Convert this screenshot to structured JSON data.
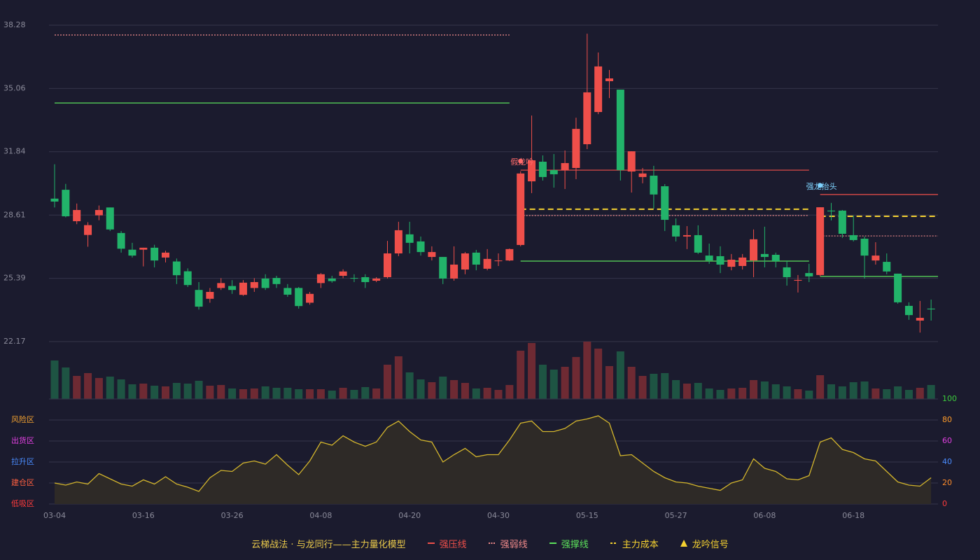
{
  "chart_data": [
    {
      "type": "candlestick",
      "legend_title": "云梯战法 · 与龙同行——主力量化模型",
      "categories": [
        "03-04",
        null,
        null,
        null,
        null,
        null,
        null,
        null,
        "03-16",
        null,
        null,
        null,
        null,
        null,
        null,
        null,
        "03-26",
        null,
        null,
        null,
        null,
        null,
        null,
        null,
        "04-08",
        null,
        null,
        null,
        null,
        null,
        null,
        null,
        "04-20",
        null,
        null,
        null,
        null,
        null,
        null,
        null,
        "04-30",
        null,
        null,
        null,
        null,
        null,
        null,
        null,
        "05-15",
        null,
        null,
        null,
        null,
        null,
        null,
        null,
        "05-27",
        null,
        null,
        null,
        null,
        null,
        null,
        null,
        "06-08",
        null,
        null,
        null,
        null,
        null,
        null,
        null,
        "06-18",
        null,
        null,
        null,
        null,
        null,
        null,
        null
      ],
      "open": [
        29.45,
        29.9,
        28.3,
        27.6,
        28.6,
        29.0,
        27.7,
        26.85,
        26.85,
        26.95,
        26.45,
        26.25,
        25.75,
        24.8,
        24.35,
        24.9,
        25.0,
        24.55,
        24.9,
        25.38,
        25.41,
        24.9,
        24.9,
        24.15,
        25.15,
        25.38,
        25.52,
        25.41,
        25.45,
        25.27,
        25.45,
        26.66,
        27.63,
        27.27,
        26.48,
        26.48,
        25.38,
        25.84,
        26.7,
        25.88,
        26.27,
        26.3,
        27.09,
        30.33,
        31.33,
        30.9,
        30.9,
        31.01,
        32.22,
        33.86,
        35.43,
        35.0,
        30.83,
        30.55,
        30.62,
        30.08,
        28.09,
        27.52,
        27.59,
        26.55,
        26.52,
        25.98,
        26.02,
        26.3,
        26.63,
        26.59,
        25.95,
        25.27,
        25.66,
        25.56,
        28.84,
        28.84,
        27.59,
        27.41,
        26.3,
        26.23,
        25.63,
        23.99,
        23.24,
        23.85
      ],
      "high": [
        31.2,
        30.2,
        29.2,
        28.25,
        29.1,
        29.0,
        27.8,
        27.2,
        26.95,
        27.1,
        26.8,
        26.4,
        25.9,
        25.2,
        24.9,
        25.4,
        25.3,
        25.3,
        25.4,
        25.6,
        25.52,
        25.1,
        24.95,
        24.7,
        25.66,
        25.52,
        25.85,
        25.6,
        25.6,
        25.45,
        27.3,
        28.27,
        28.27,
        27.52,
        27.02,
        26.48,
        27.02,
        26.73,
        26.84,
        26.88,
        26.66,
        26.91,
        30.84,
        33.68,
        31.65,
        31.72,
        31.9,
        33.57,
        37.85,
        36.89,
        36.0,
        35.0,
        31.86,
        31.01,
        31.12,
        30.19,
        28.44,
        28.05,
        28.09,
        27.16,
        27.02,
        26.63,
        26.63,
        27.88,
        28.02,
        26.7,
        26.3,
        25.56,
        26.13,
        29.01,
        29.23,
        28.87,
        28.59,
        27.52,
        27.23,
        26.66,
        25.63,
        24.17,
        24.24,
        24.31
      ],
      "low": [
        29.0,
        28.5,
        28.15,
        27.0,
        28.35,
        27.8,
        26.7,
        26.45,
        26.0,
        25.95,
        26.2,
        25.1,
        24.95,
        23.8,
        24.15,
        24.8,
        24.6,
        24.5,
        24.7,
        24.8,
        24.9,
        24.45,
        23.85,
        24.05,
        24.9,
        25.17,
        25.4,
        25.2,
        24.9,
        25.2,
        25.38,
        26.52,
        26.66,
        26.55,
        26.3,
        25.1,
        25.27,
        25.6,
        25.8,
        25.8,
        26.02,
        26.27,
        27.02,
        29.73,
        30.37,
        30.01,
        29.94,
        30.44,
        31.97,
        33.75,
        34.57,
        30.37,
        29.76,
        30.23,
        28.94,
        27.8,
        27.27,
        26.88,
        26.63,
        26.13,
        25.66,
        25.8,
        25.84,
        25.45,
        25.95,
        25.95,
        25.02,
        24.67,
        25.2,
        25.49,
        28.34,
        27.45,
        27.27,
        25.38,
        26.09,
        25.6,
        24.1,
        23.28,
        22.63,
        23.24
      ],
      "close": [
        29.3,
        28.55,
        28.87,
        28.1,
        28.87,
        27.88,
        26.9,
        26.55,
        26.95,
        26.3,
        26.7,
        25.55,
        25.05,
        23.95,
        24.7,
        25.15,
        24.8,
        25.17,
        25.2,
        24.9,
        25.1,
        24.56,
        23.98,
        24.6,
        25.6,
        25.25,
        25.74,
        25.38,
        25.2,
        25.38,
        26.66,
        27.84,
        27.2,
        26.73,
        26.73,
        25.38,
        26.09,
        26.66,
        26.09,
        26.38,
        26.3,
        26.88,
        30.73,
        31.4,
        30.55,
        30.69,
        31.26,
        33.0,
        34.86,
        36.18,
        35.57,
        30.9,
        31.86,
        30.73,
        29.66,
        28.37,
        27.52,
        27.59,
        26.7,
        26.3,
        26.09,
        26.34,
        26.45,
        27.38,
        26.48,
        26.27,
        25.45,
        25.31,
        25.49,
        29.01,
        28.8,
        27.66,
        27.34,
        26.55,
        26.55,
        25.74,
        24.17,
        23.52,
        23.38,
        23.81
      ],
      "up_color": "#ef4f4a",
      "down_color": "#22b36a",
      "ylim": [
        22.17,
        38.28
      ],
      "yticks": [
        38.28,
        35.06,
        31.84,
        28.61,
        25.39,
        22.17
      ],
      "grid": true,
      "volume": {
        "values": [
          55,
          45,
          33,
          37,
          30,
          32,
          28,
          21,
          22,
          19,
          18,
          23,
          22,
          26,
          19,
          20,
          15,
          14,
          15,
          18,
          16,
          16,
          14,
          14,
          14,
          12,
          16,
          13,
          17,
          15,
          49,
          61,
          38,
          28,
          24,
          32,
          27,
          23,
          15,
          16,
          13,
          20,
          69,
          80,
          49,
          42,
          46,
          60,
          82,
          72,
          47,
          68,
          46,
          33,
          36,
          37,
          27,
          22,
          23,
          15,
          13,
          15,
          16,
          27,
          25,
          21,
          18,
          14,
          12,
          34,
          21,
          18,
          24,
          25,
          15,
          14,
          18,
          13,
          16,
          20
        ],
        "ylim": [
          0,
          82
        ],
        "up_color": "#6e2a33",
        "down_color": "#1e5443"
      },
      "series": [
        {
          "name": "强压线",
          "color": "#ef4f4a",
          "style": "solid"
        },
        {
          "name": "强弱线",
          "color": "#f08a8a",
          "style": "dotted"
        },
        {
          "name": "强撑线",
          "color": "#5be05b",
          "style": "solid"
        },
        {
          "name": "主力成本",
          "color": "#f5d130",
          "style": "dashed"
        },
        {
          "name": "龙吟信号",
          "color": "#f5d130",
          "style": "marker"
        }
      ],
      "levels": [
        {
          "series": 1,
          "x": [
            0,
            41
          ],
          "value": 37.78
        },
        {
          "series": 2,
          "x": [
            0,
            41
          ],
          "value": 34.32
        },
        {
          "series": 0,
          "x": [
            42,
            68
          ],
          "value": 30.9
        },
        {
          "series": 3,
          "x": [
            42,
            68
          ],
          "value": 28.91
        },
        {
          "series": 1,
          "x": [
            42,
            68
          ],
          "value": 28.59
        },
        {
          "series": 2,
          "x": [
            42,
            68
          ],
          "value": 26.27
        },
        {
          "series": 0,
          "x": [
            69,
            80
          ],
          "value": 29.66
        },
        {
          "series": 3,
          "x": [
            69,
            80
          ],
          "value": 28.55
        },
        {
          "series": 1,
          "x": [
            69,
            80
          ],
          "value": 27.55
        },
        {
          "series": 2,
          "x": [
            69,
            80
          ],
          "value": 25.49
        }
      ],
      "annotations": [
        {
          "text": "假龙吟",
          "x": 42,
          "y": 31.29,
          "color": "#ff6b6b"
        },
        {
          "text": "强龙抬头",
          "x": 69,
          "y": 30.05,
          "color": "#7fd4ff"
        }
      ]
    },
    {
      "type": "line",
      "values": [
        20,
        18,
        21,
        19,
        29,
        24,
        19,
        17,
        23,
        19,
        26,
        19,
        16,
        12,
        25,
        32,
        31,
        39,
        41,
        38,
        47,
        37,
        28,
        41,
        59,
        56,
        65,
        59,
        55,
        59,
        73,
        79,
        69,
        61,
        59,
        40,
        47,
        53,
        45,
        47,
        47,
        61,
        77,
        79,
        69,
        69,
        72,
        79,
        81,
        84,
        77,
        46,
        47,
        39,
        31,
        25,
        21,
        20,
        17,
        15,
        13,
        20,
        23,
        43,
        34,
        31,
        24,
        23,
        27,
        59,
        63,
        52,
        49,
        43,
        41,
        31,
        21,
        18,
        17,
        25
      ],
      "color": "#d4b62c",
      "area_color": "#2e2a27",
      "ylim": [
        0,
        100
      ],
      "yticks": [
        0,
        20,
        40,
        60,
        80,
        100
      ],
      "ytick_colors": [
        "#ff3b3b",
        "#ff8c2a",
        "#4a8cff",
        "#e040e0",
        "#ff9c2a",
        "#3ccc3c"
      ],
      "zones": [
        {
          "label": "风险区",
          "value": 80,
          "color": "#f0a030"
        },
        {
          "label": "出货区",
          "value": 60,
          "color": "#e040e0"
        },
        {
          "label": "拉升区",
          "value": 40,
          "color": "#4a8cff"
        },
        {
          "label": "建仓区",
          "value": 20,
          "color": "#ff6040"
        },
        {
          "label": "低吸区",
          "value": 0,
          "color": "#ff3b3b"
        }
      ]
    }
  ]
}
